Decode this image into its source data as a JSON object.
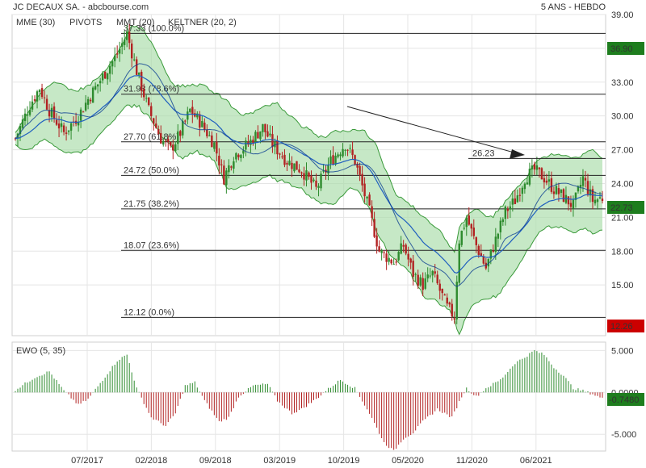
{
  "header": {
    "title": "JC DECAUX SA. - abcbourse.com",
    "period": "5 ANS - HEBDO",
    "legend": [
      {
        "label": "MME (30)",
        "color": "#1f5fbf"
      },
      {
        "label": "PIVOTS",
        "color": "#333333"
      },
      {
        "label": "MMT (20)",
        "color": "#1f5fbf"
      },
      {
        "label": "KELTNER (20, 2)",
        "color": "#3a9a3a"
      }
    ]
  },
  "colors": {
    "up": "#2e8b2e",
    "down": "#b22222",
    "band_fill": "#a8dca8",
    "band_line": "#3a9a3a",
    "mme": "#1f5fbf",
    "mmt": "#1f5fbf",
    "grid": "#e5e5e5",
    "last_price": "#1e7d1e",
    "level_badge": "#cc0000"
  },
  "price_axis": {
    "ticks": [
      "39.00",
      "36.00",
      "33.00",
      "30.00",
      "27.00",
      "24.00",
      "21.00",
      "18.00",
      "15.00"
    ],
    "min": 10.5,
    "max": 39.0
  },
  "x_axis": {
    "labels": [
      "07/2017",
      "02/2018",
      "09/2018",
      "03/2019",
      "10/2019",
      "05/2020",
      "11/2020",
      "06/2021"
    ]
  },
  "badges": {
    "top": "36.90",
    "last": "22.73",
    "bottom": "12.26",
    "ewo": "-0.7480"
  },
  "fib_levels": [
    {
      "value": 37.33,
      "label": "37.33 (100.0%)"
    },
    {
      "value": 31.93,
      "label": "31.93 (78.6%)"
    },
    {
      "value": 27.7,
      "label": "27.70 (61.8%)"
    },
    {
      "value": 24.72,
      "label": "24.72 (50.0%)"
    },
    {
      "value": 21.75,
      "label": "21.75 (38.2%)"
    },
    {
      "value": 18.07,
      "label": "18.07 (23.6%)"
    },
    {
      "value": 12.12,
      "label": "12.12 (0.0%)"
    }
  ],
  "annotations": {
    "level_26": {
      "value": 26.23,
      "label": "26.23"
    }
  },
  "ewo": {
    "label": "EWO (5, 35)",
    "ticks": [
      "5.000",
      "0.0000",
      "-5.000"
    ],
    "min": -7.0,
    "max": 6.0
  },
  "chart_data": {
    "type": "candlestick",
    "title": "JC DECAUX SA. - abcbourse.com",
    "subtitle": "5 ANS - HEBDO",
    "x_labels": [
      "07/2017",
      "02/2018",
      "09/2018",
      "03/2019",
      "10/2019",
      "05/2020",
      "11/2020",
      "06/2021"
    ],
    "price_anchors": [
      [
        0,
        28.0
      ],
      [
        6,
        31.0
      ],
      [
        10,
        32.5
      ],
      [
        14,
        30.5
      ],
      [
        20,
        28.5
      ],
      [
        26,
        30.0
      ],
      [
        30,
        31.5
      ],
      [
        36,
        33.5
      ],
      [
        42,
        35.5
      ],
      [
        46,
        37.3
      ],
      [
        50,
        34.0
      ],
      [
        55,
        30.5
      ],
      [
        60,
        28.0
      ],
      [
        64,
        27.0
      ],
      [
        68,
        28.5
      ],
      [
        72,
        30.5
      ],
      [
        76,
        29.5
      ],
      [
        82,
        27.5
      ],
      [
        86,
        24.5
      ],
      [
        90,
        26.5
      ],
      [
        96,
        27.5
      ],
      [
        102,
        29.0
      ],
      [
        106,
        27.5
      ],
      [
        112,
        26.0
      ],
      [
        118,
        25.2
      ],
      [
        124,
        23.5
      ],
      [
        130,
        26.0
      ],
      [
        136,
        27.5
      ],
      [
        140,
        26.0
      ],
      [
        146,
        21.5
      ],
      [
        150,
        18.0
      ],
      [
        156,
        17.0
      ],
      [
        160,
        18.5
      ],
      [
        164,
        16.0
      ],
      [
        168,
        15.0
      ],
      [
        172,
        16.0
      ],
      [
        178,
        13.0
      ],
      [
        181,
        12.2
      ],
      [
        183,
        19.0
      ],
      [
        186,
        21.0
      ],
      [
        190,
        18.5
      ],
      [
        194,
        16.5
      ],
      [
        198,
        19.0
      ],
      [
        202,
        21.5
      ],
      [
        206,
        22.5
      ],
      [
        210,
        24.5
      ],
      [
        214,
        25.2
      ],
      [
        218,
        24.5
      ],
      [
        222,
        23.5
      ],
      [
        226,
        22.8
      ],
      [
        230,
        22.0
      ],
      [
        234,
        24.5
      ],
      [
        238,
        22.5
      ],
      [
        242,
        22.73
      ]
    ],
    "ewo_anchors": [
      [
        0,
        0.3
      ],
      [
        8,
        1.8
      ],
      [
        14,
        2.5
      ],
      [
        20,
        0.2
      ],
      [
        26,
        -1.5
      ],
      [
        30,
        -0.8
      ],
      [
        36,
        1.5
      ],
      [
        42,
        3.8
      ],
      [
        46,
        4.5
      ],
      [
        50,
        0.5
      ],
      [
        56,
        -3.0
      ],
      [
        62,
        -4.0
      ],
      [
        66,
        -2.5
      ],
      [
        70,
        0.8
      ],
      [
        74,
        1.2
      ],
      [
        78,
        -1.0
      ],
      [
        84,
        -3.5
      ],
      [
        88,
        -3.0
      ],
      [
        92,
        -0.5
      ],
      [
        98,
        0.8
      ],
      [
        104,
        1.0
      ],
      [
        108,
        -1.0
      ],
      [
        114,
        -2.5
      ],
      [
        118,
        -2.0
      ],
      [
        124,
        -0.8
      ],
      [
        128,
        0.2
      ],
      [
        134,
        1.5
      ],
      [
        140,
        0.5
      ],
      [
        146,
        -2.5
      ],
      [
        152,
        -6.0
      ],
      [
        156,
        -7.0
      ],
      [
        160,
        -5.5
      ],
      [
        164,
        -4.8
      ],
      [
        168,
        -3.5
      ],
      [
        174,
        -2.0
      ],
      [
        180,
        -3.0
      ],
      [
        184,
        -0.5
      ],
      [
        186,
        0.5
      ],
      [
        190,
        -0.5
      ],
      [
        194,
        0.5
      ],
      [
        200,
        1.5
      ],
      [
        206,
        3.5
      ],
      [
        210,
        4.2
      ],
      [
        214,
        5.0
      ],
      [
        218,
        4.5
      ],
      [
        222,
        3.0
      ],
      [
        226,
        2.0
      ],
      [
        230,
        0.5
      ],
      [
        234,
        0.2
      ],
      [
        238,
        -0.2
      ],
      [
        242,
        -0.748
      ]
    ],
    "n_weeks": 243,
    "price_range": [
      10.5,
      39.0
    ],
    "ewo_range": [
      -7.0,
      6.0
    ]
  }
}
